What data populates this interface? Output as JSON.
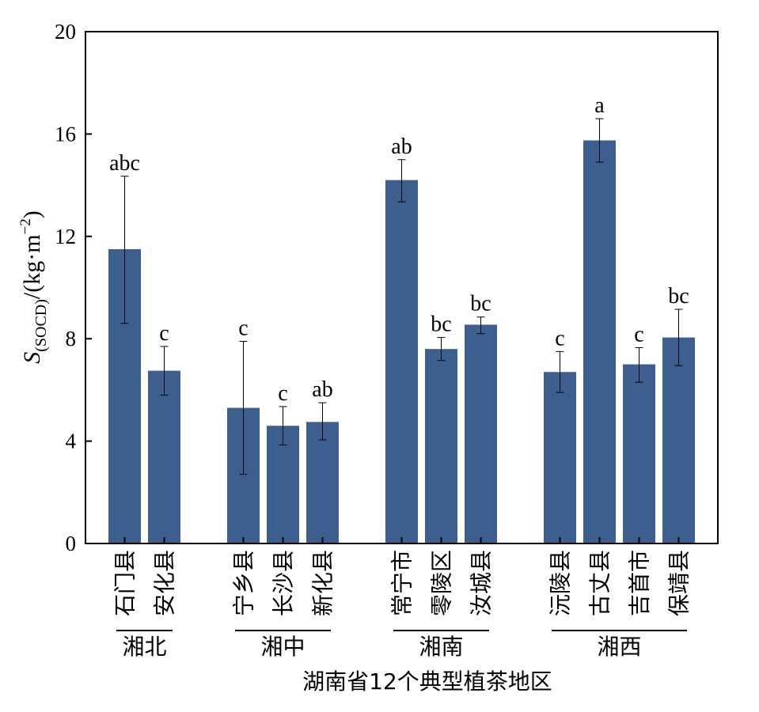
{
  "chart_data": {
    "type": "bar",
    "xlabel": "湖南省12个典型植茶地区",
    "ylabel": {
      "symbol": "S",
      "subscript": "(SOCD)",
      "unit_prefix": "/(kg·m",
      "exponent": "−2",
      "unit_suffix": ")"
    },
    "ylim": [
      0,
      20
    ],
    "yticks": [
      "0",
      "4",
      "8",
      "12",
      "16",
      "20"
    ],
    "bar_color": "#3D5F8F",
    "groups": [
      {
        "name": "湘北",
        "categories": [
          {
            "label": "石门县",
            "value": 11.5,
            "err_low": 8.6,
            "err_high": 14.35,
            "sig": "abc"
          },
          {
            "label": "安化县",
            "value": 6.75,
            "err_low": 5.8,
            "err_high": 7.7,
            "sig": "c"
          }
        ]
      },
      {
        "name": "湘中",
        "categories": [
          {
            "label": "宁乡县",
            "value": 5.3,
            "err_low": 2.7,
            "err_high": 7.9,
            "sig": "c"
          },
          {
            "label": "长沙县",
            "value": 4.6,
            "err_low": 3.85,
            "err_high": 5.35,
            "sig": "c"
          },
          {
            "label": "新化县",
            "value": 4.75,
            "err_low": 4.05,
            "err_high": 5.5,
            "sig": "ab"
          }
        ]
      },
      {
        "name": "湘南",
        "categories": [
          {
            "label": "常宁市",
            "value": 14.2,
            "err_low": 13.35,
            "err_high": 15.0,
            "sig": "ab"
          },
          {
            "label": "零陵区",
            "value": 7.6,
            "err_low": 7.15,
            "err_high": 8.05,
            "sig": "bc"
          },
          {
            "label": "汝城县",
            "value": 8.55,
            "err_low": 8.2,
            "err_high": 8.85,
            "sig": "bc"
          }
        ]
      },
      {
        "name": "湘西",
        "categories": [
          {
            "label": "沅陵县",
            "value": 6.7,
            "err_low": 5.9,
            "err_high": 7.5,
            "sig": "c"
          },
          {
            "label": "古丈县",
            "value": 15.75,
            "err_low": 14.9,
            "err_high": 16.6,
            "sig": "a"
          },
          {
            "label": "吉首市",
            "value": 7.0,
            "err_low": 6.3,
            "err_high": 7.65,
            "sig": "c"
          },
          {
            "label": "保靖县",
            "value": 8.05,
            "err_low": 6.95,
            "err_high": 9.15,
            "sig": "bc"
          }
        ]
      }
    ]
  }
}
